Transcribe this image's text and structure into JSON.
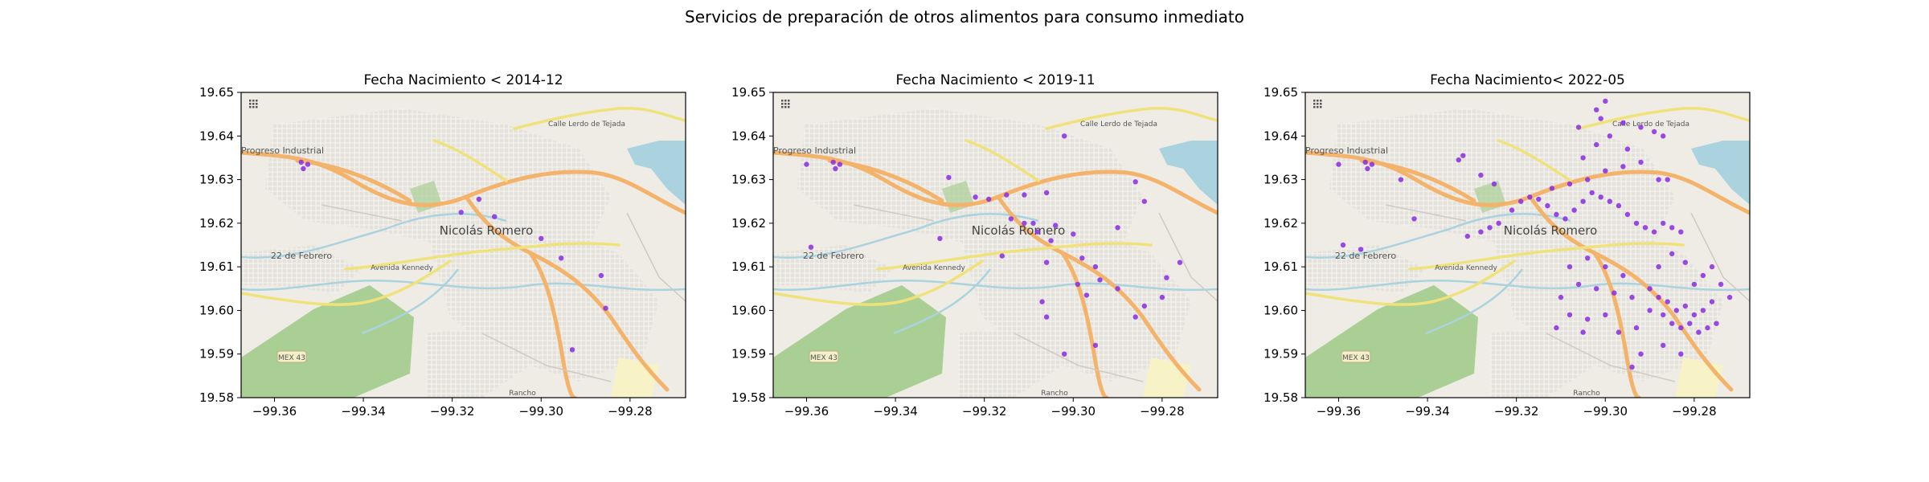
{
  "figure": {
    "suptitle": "Servicios de preparación de otros alimentos para consumo inmediato"
  },
  "map_labels": {
    "town": "Nicolás Romero",
    "progreso": "Progreso Industrial",
    "febrero": "22 de Febrero",
    "avenida": "Avenida Kennedy",
    "calle": "Calle Lerdo de Tejada",
    "mex43": "MEX 43",
    "rancho": "Rancho"
  },
  "colors": {
    "point": "#8a2be2",
    "land": "#efece6",
    "park": "#a9cf94",
    "water": "#aad3df",
    "highway": "#f4b36b",
    "trunk": "#f0e27a"
  },
  "chart_data": [
    {
      "type": "scatter",
      "title": "Fecha Nacimiento < 2014-12",
      "xlim": [
        -99.3675,
        -99.2675
      ],
      "ylim": [
        19.58,
        19.65
      ],
      "xticks": [
        "−99.36",
        "−99.34",
        "−99.32",
        "−99.30",
        "−99.28"
      ],
      "xtick_values": [
        -99.36,
        -99.34,
        -99.32,
        -99.3,
        -99.28
      ],
      "yticks": [
        "19.58",
        "19.59",
        "19.60",
        "19.61",
        "19.62",
        "19.63",
        "19.64",
        "19.65"
      ],
      "ytick_values": [
        19.58,
        19.59,
        19.6,
        19.61,
        19.62,
        19.63,
        19.64,
        19.65
      ],
      "points": [
        [
          -99.354,
          19.634
        ],
        [
          -99.3525,
          19.6335
        ],
        [
          -99.3535,
          19.6325
        ],
        [
          -99.314,
          19.6255
        ],
        [
          -99.318,
          19.6225
        ],
        [
          -99.3105,
          19.6215
        ],
        [
          -99.3,
          19.6165
        ],
        [
          -99.2955,
          19.612
        ],
        [
          -99.2865,
          19.608
        ],
        [
          -99.2855,
          19.6005
        ],
        [
          -99.293,
          19.591
        ]
      ]
    },
    {
      "type": "scatter",
      "title": "Fecha Nacimiento < 2019-11",
      "xlim": [
        -99.3675,
        -99.2675
      ],
      "ylim": [
        19.58,
        19.65
      ],
      "xticks": [
        "−99.36",
        "−99.34",
        "−99.32",
        "−99.30",
        "−99.28"
      ],
      "xtick_values": [
        -99.36,
        -99.34,
        -99.32,
        -99.3,
        -99.28
      ],
      "yticks": [
        "19.58",
        "19.59",
        "19.60",
        "19.61",
        "19.62",
        "19.63",
        "19.64",
        "19.65"
      ],
      "ytick_values": [
        19.58,
        19.59,
        19.6,
        19.61,
        19.62,
        19.63,
        19.64,
        19.65
      ],
      "points": [
        [
          -99.36,
          19.6335
        ],
        [
          -99.354,
          19.634
        ],
        [
          -99.3525,
          19.6335
        ],
        [
          -99.3535,
          19.6325
        ],
        [
          -99.359,
          19.6145
        ],
        [
          -99.33,
          19.6165
        ],
        [
          -99.328,
          19.6305
        ],
        [
          -99.322,
          19.626
        ],
        [
          -99.319,
          19.6255
        ],
        [
          -99.315,
          19.6265
        ],
        [
          -99.311,
          19.6265
        ],
        [
          -99.314,
          19.621
        ],
        [
          -99.311,
          19.62
        ],
        [
          -99.309,
          19.62
        ],
        [
          -99.308,
          19.618
        ],
        [
          -99.306,
          19.627
        ],
        [
          -99.304,
          19.6195
        ],
        [
          -99.305,
          19.616
        ],
        [
          -99.302,
          19.64
        ],
        [
          -99.3,
          19.6175
        ],
        [
          -99.298,
          19.612
        ],
        [
          -99.295,
          19.61
        ],
        [
          -99.29,
          19.619
        ],
        [
          -99.284,
          19.625
        ],
        [
          -99.286,
          19.6295
        ],
        [
          -99.316,
          19.6125
        ],
        [
          -99.306,
          19.611
        ],
        [
          -99.299,
          19.606
        ],
        [
          -99.294,
          19.607
        ],
        [
          -99.297,
          19.6035
        ],
        [
          -99.29,
          19.605
        ],
        [
          -99.286,
          19.5985
        ],
        [
          -99.284,
          19.601
        ],
        [
          -99.28,
          19.603
        ],
        [
          -99.279,
          19.6075
        ],
        [
          -99.276,
          19.611
        ],
        [
          -99.307,
          19.602
        ],
        [
          -99.306,
          19.5985
        ],
        [
          -99.295,
          19.592
        ],
        [
          -99.302,
          19.59
        ]
      ]
    },
    {
      "type": "scatter",
      "title": "Fecha Nacimiento< 2022-05",
      "xlim": [
        -99.3675,
        -99.2675
      ],
      "ylim": [
        19.58,
        19.65
      ],
      "xticks": [
        "−99.36",
        "−99.34",
        "−99.32",
        "−99.30",
        "−99.28"
      ],
      "xtick_values": [
        -99.36,
        -99.34,
        -99.32,
        -99.3,
        -99.28
      ],
      "yticks": [
        "19.58",
        "19.59",
        "19.60",
        "19.61",
        "19.62",
        "19.63",
        "19.64",
        "19.65"
      ],
      "ytick_values": [
        19.58,
        19.59,
        19.6,
        19.61,
        19.62,
        19.63,
        19.64,
        19.65
      ],
      "points": [
        [
          -99.36,
          19.6335
        ],
        [
          -99.354,
          19.634
        ],
        [
          -99.3525,
          19.6335
        ],
        [
          -99.3535,
          19.6325
        ],
        [
          -99.359,
          19.615
        ],
        [
          -99.355,
          19.614
        ],
        [
          -99.346,
          19.63
        ],
        [
          -99.343,
          19.621
        ],
        [
          -99.333,
          19.6345
        ],
        [
          -99.332,
          19.6355
        ],
        [
          -99.328,
          19.631
        ],
        [
          -99.325,
          19.629
        ],
        [
          -99.331,
          19.617
        ],
        [
          -99.328,
          19.618
        ],
        [
          -99.326,
          19.619
        ],
        [
          -99.324,
          19.62
        ],
        [
          -99.321,
          19.623
        ],
        [
          -99.319,
          19.625
        ],
        [
          -99.317,
          19.626
        ],
        [
          -99.315,
          19.6255
        ],
        [
          -99.313,
          19.624
        ],
        [
          -99.311,
          19.622
        ],
        [
          -99.309,
          19.621
        ],
        [
          -99.307,
          19.623
        ],
        [
          -99.305,
          19.625
        ],
        [
          -99.303,
          19.627
        ],
        [
          -99.301,
          19.626
        ],
        [
          -99.299,
          19.625
        ],
        [
          -99.297,
          19.624
        ],
        [
          -99.295,
          19.622
        ],
        [
          -99.293,
          19.62
        ],
        [
          -99.291,
          19.619
        ],
        [
          -99.289,
          19.618
        ],
        [
          -99.287,
          19.62
        ],
        [
          -99.285,
          19.619
        ],
        [
          -99.283,
          19.618
        ],
        [
          -99.312,
          19.628
        ],
        [
          -99.308,
          19.629
        ],
        [
          -99.304,
          19.63
        ],
        [
          -99.3,
          19.632
        ],
        [
          -99.296,
          19.633
        ],
        [
          -99.292,
          19.634
        ],
        [
          -99.288,
          19.63
        ],
        [
          -99.286,
          19.63
        ],
        [
          -99.305,
          19.635
        ],
        [
          -99.302,
          19.638
        ],
        [
          -99.299,
          19.64
        ],
        [
          -99.295,
          19.637
        ],
        [
          -99.306,
          19.642
        ],
        [
          -99.301,
          19.644
        ],
        [
          -99.296,
          19.643
        ],
        [
          -99.292,
          19.642
        ],
        [
          -99.289,
          19.641
        ],
        [
          -99.287,
          19.64
        ],
        [
          -99.3,
          19.648
        ],
        [
          -99.302,
          19.646
        ],
        [
          -99.308,
          19.61
        ],
        [
          -99.304,
          19.612
        ],
        [
          -99.3,
          19.61
        ],
        [
          -99.296,
          19.608
        ],
        [
          -99.306,
          19.606
        ],
        [
          -99.302,
          19.605
        ],
        [
          -99.298,
          19.604
        ],
        [
          -99.294,
          19.603
        ],
        [
          -99.31,
          19.603
        ],
        [
          -99.308,
          19.599
        ],
        [
          -99.304,
          19.598
        ],
        [
          -99.3,
          19.599
        ],
        [
          -99.311,
          19.596
        ],
        [
          -99.305,
          19.595
        ],
        [
          -99.297,
          19.595
        ],
        [
          -99.293,
          19.596
        ],
        [
          -99.29,
          19.605
        ],
        [
          -99.288,
          19.603
        ],
        [
          -99.286,
          19.602
        ],
        [
          -99.284,
          19.6
        ],
        [
          -99.282,
          19.601
        ],
        [
          -99.28,
          19.599
        ],
        [
          -99.278,
          19.6
        ],
        [
          -99.276,
          19.602
        ],
        [
          -99.29,
          19.6
        ],
        [
          -99.287,
          19.599
        ],
        [
          -99.285,
          19.597
        ],
        [
          -99.283,
          19.596
        ],
        [
          -99.281,
          19.597
        ],
        [
          -99.279,
          19.595
        ],
        [
          -99.277,
          19.596
        ],
        [
          -99.275,
          19.597
        ],
        [
          -99.28,
          19.606
        ],
        [
          -99.278,
          19.608
        ],
        [
          -99.276,
          19.61
        ],
        [
          -99.274,
          19.606
        ],
        [
          -99.272,
          19.603
        ],
        [
          -99.282,
          19.611
        ],
        [
          -99.285,
          19.613
        ],
        [
          -99.288,
          19.61
        ],
        [
          -99.292,
          19.59
        ],
        [
          -99.287,
          19.592
        ],
        [
          -99.294,
          19.587
        ],
        [
          -99.283,
          19.59
        ]
      ]
    }
  ]
}
